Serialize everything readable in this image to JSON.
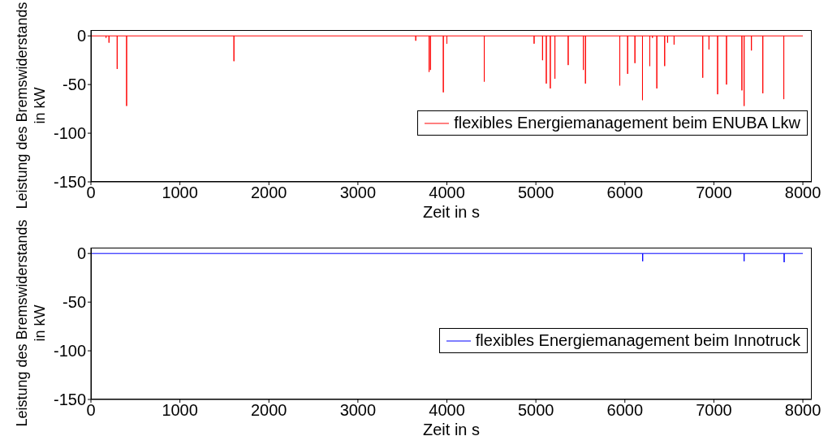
{
  "chart_data": [
    {
      "type": "line",
      "xlabel": "Zeit in s",
      "ylabel": "Leistung des Bremswiderstands in kW",
      "xlim": [
        0,
        8100
      ],
      "ylim": [
        -150,
        6
      ],
      "xticks": [
        0,
        1000,
        2000,
        3000,
        4000,
        5000,
        6000,
        7000,
        8000
      ],
      "yticks": [
        -150,
        -100,
        -50,
        0
      ],
      "legend": "bottom right",
      "marker": "none",
      "line_style": "solid",
      "series": [
        {
          "name": "flexibles Energiemanagement beim ENUBA Lkw",
          "color": "#ff0000",
          "x": [
            0,
            170,
            170,
            170,
            203,
            203,
            203,
            295,
            295,
            295,
            401,
            401,
            401,
            1607,
            1607,
            1607,
            3650,
            3650,
            3650,
            3800,
            3800,
            3800,
            3815,
            3815,
            3815,
            3960,
            3960,
            3960,
            4000,
            4000,
            4000,
            4420,
            4420,
            4420,
            4980,
            4980,
            4980,
            5075,
            5075,
            5075,
            5117,
            5117,
            5117,
            5162,
            5162,
            5162,
            5214,
            5214,
            5214,
            5363,
            5363,
            5363,
            5533,
            5533,
            5533,
            5557,
            5557,
            5557,
            5943,
            5943,
            5943,
            6031,
            6031,
            6031,
            6113,
            6113,
            6113,
            6198,
            6198,
            6198,
            6280,
            6280,
            6280,
            6310,
            6310,
            6310,
            6359,
            6359,
            6359,
            6447,
            6447,
            6447,
            6480,
            6480,
            6480,
            6553,
            6553,
            6553,
            6875,
            6875,
            6875,
            6945,
            6945,
            6945,
            7042,
            7042,
            7042,
            7142,
            7142,
            7142,
            7315,
            7315,
            7315,
            7340,
            7340,
            7340,
            7422,
            7422,
            7422,
            7550,
            7550,
            7550,
            7786,
            7786,
            7786,
            8000
          ],
          "values": [
            0,
            0,
            -2,
            0,
            0,
            -7,
            0,
            0,
            -34,
            0,
            0,
            -72,
            0,
            0,
            -26,
            0,
            0,
            -5,
            0,
            0,
            -37,
            0,
            0,
            -35,
            0,
            0,
            -58,
            0,
            0,
            -8,
            0,
            0,
            -47,
            0,
            0,
            -8,
            0,
            0,
            -25,
            0,
            0,
            -49,
            0,
            0,
            -54,
            0,
            0,
            -44,
            0,
            0,
            -30,
            0,
            0,
            -35,
            0,
            0,
            -49,
            0,
            0,
            -51,
            0,
            0,
            -39,
            0,
            0,
            -28,
            0,
            0,
            -66,
            0,
            0,
            -31,
            0,
            0,
            -2,
            0,
            0,
            -54,
            0,
            0,
            -31,
            0,
            0,
            -7,
            0,
            0,
            -9,
            0,
            0,
            -43,
            0,
            0,
            -14,
            0,
            0,
            -60,
            0,
            0,
            -50,
            0,
            0,
            -56,
            0,
            0,
            -72,
            0,
            0,
            -15,
            0,
            0,
            -59,
            0,
            0,
            -65,
            0,
            0
          ]
        }
      ]
    },
    {
      "type": "line",
      "xlabel": "Zeit in s",
      "ylabel": "Leistung des Bremswiderstands in kW",
      "xlim": [
        0,
        8100
      ],
      "ylim": [
        -150,
        6
      ],
      "xticks": [
        0,
        1000,
        2000,
        3000,
        4000,
        5000,
        6000,
        7000,
        8000
      ],
      "yticks": [
        -150,
        -100,
        -50,
        0
      ],
      "legend": "bottom right",
      "marker": "none",
      "line_style": "solid",
      "series": [
        {
          "name": "flexibles Energiemanagement beim Innotruck",
          "color": "#0000ff",
          "x": [
            0,
            6200,
            6200,
            6200,
            7340,
            7340,
            7340,
            7790,
            7790,
            7790,
            8000
          ],
          "values": [
            0,
            0,
            -8,
            0,
            0,
            -8,
            0,
            0,
            -9,
            0,
            0
          ]
        }
      ]
    }
  ]
}
